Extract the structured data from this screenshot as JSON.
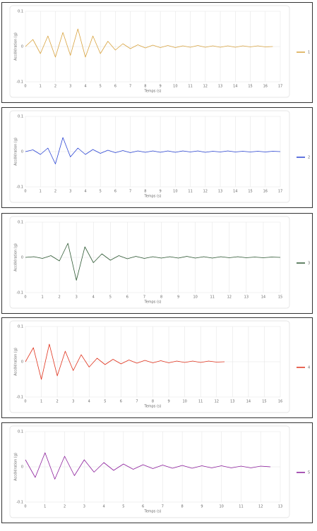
{
  "chart_data": [
    {
      "type": "line",
      "x_label": "Temps (s)",
      "y_label": "Accélération (g)",
      "xlim": [
        0,
        17
      ],
      "xticks": [
        0,
        1,
        2,
        3,
        4,
        5,
        6,
        7,
        8,
        9,
        10,
        11,
        12,
        13,
        14,
        15,
        16,
        17
      ],
      "ylim": [
        -0.1,
        0.1
      ],
      "yticks": [
        -0.1,
        0,
        0.1
      ],
      "grid": true,
      "legend": "right",
      "x": [
        0,
        0.5,
        1,
        1.5,
        2,
        2.5,
        3,
        3.5,
        4,
        4.5,
        5,
        5.5,
        6,
        6.5,
        7,
        7.5,
        8,
        8.5,
        9,
        9.5,
        10,
        10.5,
        11,
        11.5,
        12,
        12.5,
        13,
        13.5,
        14,
        14.5,
        15,
        15.5,
        16,
        16.5
      ],
      "series": [
        {
          "name": "1",
          "color": "#d9a441",
          "values": [
            0,
            0.02,
            -0.02,
            0.03,
            -0.03,
            0.04,
            -0.025,
            0.05,
            -0.03,
            0.03,
            -0.02,
            0.015,
            -0.01,
            0.008,
            -0.006,
            0.005,
            -0.004,
            0.004,
            -0.003,
            0.003,
            -0.003,
            0.002,
            -0.002,
            0.003,
            -0.002,
            0.002,
            -0.002,
            0.002,
            -0.002,
            0.002,
            -0.001,
            0.002,
            -0.001,
            0
          ]
        }
      ]
    },
    {
      "type": "line",
      "x_label": "Temps (s)",
      "y_label": "Accélération (g)",
      "xlim": [
        0,
        17
      ],
      "xticks": [
        0,
        1,
        2,
        3,
        4,
        5,
        6,
        7,
        8,
        9,
        10,
        11,
        12,
        13,
        14,
        15,
        16,
        17
      ],
      "ylim": [
        -0.1,
        0.1
      ],
      "yticks": [
        -0.1,
        0,
        0.1
      ],
      "grid": true,
      "legend": "right",
      "x": [
        0,
        0.5,
        1,
        1.5,
        2,
        2.5,
        3,
        3.5,
        4,
        4.5,
        5,
        5.5,
        6,
        6.5,
        7,
        7.5,
        8,
        8.5,
        9,
        9.5,
        10,
        10.5,
        11,
        11.5,
        12,
        12.5,
        13,
        13.5,
        14,
        14.5,
        15,
        15.5,
        16,
        16.5,
        17
      ],
      "series": [
        {
          "name": "2",
          "color": "#2b45d4",
          "values": [
            0,
            0.005,
            -0.008,
            0.01,
            -0.035,
            0.04,
            -0.015,
            0.01,
            -0.008,
            0.006,
            -0.005,
            0.004,
            -0.003,
            0.003,
            -0.003,
            0.002,
            -0.002,
            0.002,
            -0.002,
            0.002,
            -0.002,
            0.002,
            -0.001,
            0.002,
            -0.002,
            0.001,
            -0.001,
            0.002,
            -0.001,
            0.001,
            -0.001,
            0.001,
            -0.001,
            0.001,
            0
          ]
        }
      ]
    },
    {
      "type": "line",
      "x_label": "Temps (s)",
      "y_label": "Accélération (g)",
      "xlim": [
        0,
        15
      ],
      "xticks": [
        0,
        1,
        2,
        3,
        4,
        5,
        6,
        7,
        8,
        9,
        10,
        11,
        12,
        13,
        14,
        15
      ],
      "ylim": [
        -0.1,
        0.1
      ],
      "yticks": [
        -0.1,
        0,
        0.1
      ],
      "grid": true,
      "legend": "right",
      "x": [
        0,
        0.5,
        1,
        1.5,
        2,
        2.5,
        3,
        3.5,
        4,
        4.5,
        5,
        5.5,
        6,
        6.5,
        7,
        7.5,
        8,
        8.5,
        9,
        9.5,
        10,
        10.5,
        11,
        11.5,
        12,
        12.5,
        13,
        13.5,
        14,
        14.5,
        15
      ],
      "series": [
        {
          "name": "3",
          "color": "#2f5a34",
          "values": [
            0,
            0.002,
            -0.003,
            0.005,
            -0.01,
            0.04,
            -0.065,
            0.03,
            -0.015,
            0.01,
            -0.008,
            0.005,
            -0.004,
            0.003,
            -0.003,
            0.002,
            -0.002,
            0.002,
            -0.002,
            0.003,
            -0.002,
            0.002,
            -0.002,
            0.002,
            -0.001,
            0.002,
            -0.001,
            0.001,
            -0.001,
            0.001,
            0
          ]
        }
      ]
    },
    {
      "type": "line",
      "x_label": "Temps (s)",
      "y_label": "Accélération (g)",
      "xlim": [
        0,
        16
      ],
      "xticks": [
        0,
        1,
        2,
        3,
        4,
        5,
        6,
        7,
        8,
        9,
        10,
        11,
        12,
        13,
        14,
        15,
        16
      ],
      "ylim": [
        -0.1,
        0.1
      ],
      "yticks": [
        -0.1,
        0,
        0.1
      ],
      "grid": true,
      "legend": "right",
      "x": [
        0,
        0.5,
        1,
        1.5,
        2,
        2.5,
        3,
        3.5,
        4,
        4.5,
        5,
        5.5,
        6,
        6.5,
        7,
        7.5,
        8,
        8.5,
        9,
        9.5,
        10,
        10.5,
        11,
        11.5,
        12,
        12.5
      ],
      "series": [
        {
          "name": "4",
          "color": "#e0321c",
          "values": [
            0,
            0.04,
            -0.05,
            0.05,
            -0.04,
            0.03,
            -0.025,
            0.02,
            -0.015,
            0.01,
            -0.008,
            0.007,
            -0.006,
            0.005,
            -0.004,
            0.004,
            -0.003,
            0.003,
            -0.003,
            0.002,
            -0.002,
            0.002,
            -0.002,
            0.002,
            -0.001,
            0
          ]
        }
      ]
    },
    {
      "type": "line",
      "x_label": "Temps (s)",
      "y_label": "Accélération (g)",
      "xlim": [
        0,
        13
      ],
      "xticks": [
        0,
        1,
        2,
        3,
        4,
        5,
        6,
        7,
        8,
        9,
        10,
        11,
        12,
        13
      ],
      "ylim": [
        -0.1,
        0.1
      ],
      "yticks": [
        -0.1,
        0,
        0.1
      ],
      "grid": true,
      "legend": "right",
      "x": [
        0,
        0.5,
        1,
        1.5,
        2,
        2.5,
        3,
        3.5,
        4,
        4.5,
        5,
        5.5,
        6,
        6.5,
        7,
        7.5,
        8,
        8.5,
        9,
        9.5,
        10,
        10.5,
        11,
        11.5,
        12,
        12.5
      ],
      "series": [
        {
          "name": "5",
          "color": "#8c1f9c",
          "values": [
            0.02,
            -0.03,
            0.04,
            -0.035,
            0.03,
            -0.025,
            0.02,
            -0.015,
            0.012,
            -0.01,
            0.008,
            -0.007,
            0.006,
            -0.005,
            0.005,
            -0.004,
            0.004,
            -0.004,
            0.003,
            -0.003,
            0.003,
            -0.003,
            0.002,
            -0.003,
            0.002,
            0
          ]
        }
      ]
    }
  ]
}
